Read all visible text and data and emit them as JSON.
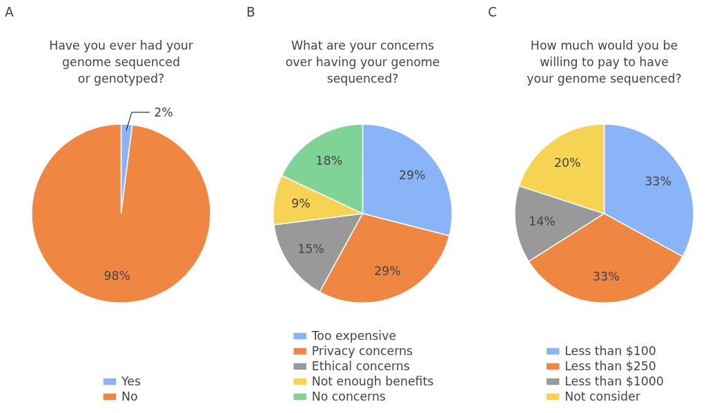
{
  "chart_data": [
    {
      "type": "pie",
      "annotations": [
        "A"
      ],
      "title": "Have you ever had your\ngenome sequenced\nor genotyped?",
      "categories": [
        "Yes",
        "No"
      ],
      "values": [
        2,
        98
      ],
      "colors": [
        "#8ab4f8",
        "#ef8742"
      ],
      "value_labels": [
        "2%",
        "98%"
      ],
      "legend": "bottom"
    },
    {
      "type": "pie",
      "annotations": [
        "B"
      ],
      "title": "What are your concerns\nover having your genome\nsequenced?",
      "categories": [
        "Too expensive",
        "Privacy concerns",
        "Ethical concerns",
        "Not enough benefits",
        "No concerns"
      ],
      "values": [
        29,
        29,
        15,
        9,
        18
      ],
      "colors": [
        "#8ab4f8",
        "#ef8742",
        "#999999",
        "#f7d354",
        "#7fd396"
      ],
      "value_labels": [
        "29%",
        "29%",
        "15%",
        "9%",
        "18%"
      ],
      "legend": "bottom"
    },
    {
      "type": "pie",
      "annotations": [
        "C"
      ],
      "title": "How much would you be\nwilling to pay to have\nyour genome sequenced?",
      "categories": [
        "Less than $100",
        "Less than $250",
        "Less than $1000",
        "Not consider"
      ],
      "values": [
        33,
        33,
        14,
        20
      ],
      "colors": [
        "#8ab4f8",
        "#ef8742",
        "#999999",
        "#f7d354"
      ],
      "value_labels": [
        "33%",
        "33%",
        "14%",
        "20%"
      ],
      "legend": "bottom"
    }
  ]
}
